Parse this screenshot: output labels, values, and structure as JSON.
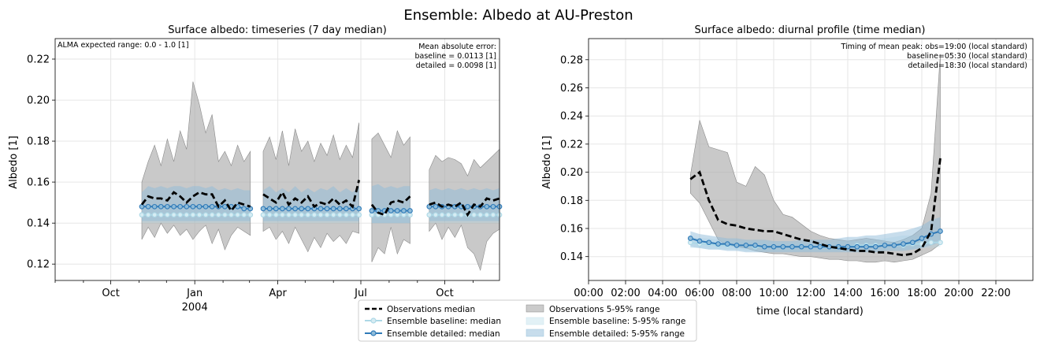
{
  "suptitle": "Ensemble: Albedo at AU-Preston",
  "colors": {
    "obs": "#000000",
    "obs_band": "#a8a8a8",
    "baseline": "#add8e6",
    "detailed": "#2f7ab8",
    "detailed_band": "#8fbcd9"
  },
  "legend": {
    "items": [
      {
        "label": "Observations median",
        "kind": "obs_line"
      },
      {
        "label": "Ensemble baseline: median",
        "kind": "baseline_line"
      },
      {
        "label": "Ensemble detailed: median",
        "kind": "detailed_line"
      },
      {
        "label": "Observations 5-95% range",
        "kind": "obs_band"
      },
      {
        "label": "Ensemble baseline: 5-95% range",
        "kind": "baseline_band"
      },
      {
        "label": "Ensemble detailed: 5-95% range",
        "kind": "detailed_band"
      }
    ]
  },
  "chart_data": [
    {
      "type": "line",
      "title": "Surface albedo: timeseries (7 day median)",
      "xlabel": "",
      "ylabel": "Albedo [1]",
      "ylim": [
        0.112,
        0.23
      ],
      "xlim": [
        "2003-08-01",
        "2004-11-30"
      ],
      "grid": true,
      "yticks": [
        "0.12",
        "0.14",
        "0.16",
        "0.18",
        "0.20",
        "0.22"
      ],
      "ytick_values": [
        0.12,
        0.14,
        0.16,
        0.18,
        0.2,
        0.22
      ],
      "xticks": [
        {
          "date": "2003-10-01",
          "label": "Oct"
        },
        {
          "date": "2004-01-01",
          "label": "Jan"
        },
        {
          "date": "2004-04-01",
          "label": "Apr"
        },
        {
          "date": "2004-07-01",
          "label": "Jul"
        },
        {
          "date": "2004-10-01",
          "label": "Oct"
        }
      ],
      "year_label": {
        "date": "2004-01-01",
        "label": "2004"
      },
      "minor_xticks": [
        "2003-08-01",
        "2003-09-01",
        "2003-11-01",
        "2003-12-01",
        "2004-02-01",
        "2004-03-01",
        "2004-05-01",
        "2004-06-01",
        "2004-08-01",
        "2004-09-01",
        "2004-11-01"
      ],
      "annotation_left": "ALMA expected range: 0.0 - 1.0 [1]",
      "annotation_right": [
        "Mean absolute error:",
        "baseline = 0.0113 [1]",
        "detailed = 0.0098 [1]"
      ],
      "segments": [
        {
          "dates": [
            "2003-11-04",
            "2003-11-11",
            "2003-11-18",
            "2003-11-25",
            "2003-12-02",
            "2003-12-09",
            "2003-12-16",
            "2003-12-23",
            "2003-12-30",
            "2004-01-06",
            "2004-01-13",
            "2004-01-20",
            "2004-01-27",
            "2004-02-03",
            "2004-02-10",
            "2004-02-17",
            "2004-02-24",
            "2004-03-02"
          ],
          "obs_median": [
            0.149,
            0.153,
            0.152,
            0.152,
            0.151,
            0.155,
            0.153,
            0.15,
            0.153,
            0.155,
            0.154,
            0.154,
            0.148,
            0.151,
            0.146,
            0.15,
            0.149,
            0.148
          ],
          "obs_p5": [
            0.132,
            0.138,
            0.133,
            0.14,
            0.135,
            0.139,
            0.134,
            0.137,
            0.132,
            0.136,
            0.139,
            0.13,
            0.137,
            0.127,
            0.134,
            0.138,
            0.136,
            0.134
          ],
          "obs_p95": [
            0.16,
            0.17,
            0.178,
            0.168,
            0.181,
            0.17,
            0.185,
            0.176,
            0.209,
            0.198,
            0.184,
            0.193,
            0.17,
            0.175,
            0.168,
            0.178,
            0.17,
            0.175
          ],
          "baseline_median": [
            0.144,
            0.144,
            0.144,
            0.144,
            0.144,
            0.144,
            0.144,
            0.144,
            0.144,
            0.144,
            0.144,
            0.144,
            0.144,
            0.144,
            0.144,
            0.144,
            0.144,
            0.144
          ],
          "baseline_p5": [
            0.14,
            0.14,
            0.14,
            0.14,
            0.14,
            0.14,
            0.14,
            0.14,
            0.14,
            0.14,
            0.14,
            0.14,
            0.14,
            0.14,
            0.14,
            0.14,
            0.14,
            0.14
          ],
          "baseline_p95": [
            0.148,
            0.148,
            0.148,
            0.148,
            0.148,
            0.148,
            0.148,
            0.148,
            0.148,
            0.148,
            0.148,
            0.148,
            0.148,
            0.148,
            0.148,
            0.148,
            0.148,
            0.148
          ],
          "detailed_median": [
            0.148,
            0.148,
            0.148,
            0.148,
            0.148,
            0.148,
            0.148,
            0.148,
            0.148,
            0.148,
            0.148,
            0.148,
            0.148,
            0.148,
            0.148,
            0.148,
            0.147,
            0.147
          ],
          "detailed_p5": [
            0.141,
            0.141,
            0.141,
            0.141,
            0.141,
            0.141,
            0.141,
            0.141,
            0.141,
            0.141,
            0.141,
            0.141,
            0.141,
            0.141,
            0.141,
            0.141,
            0.141,
            0.141
          ],
          "detailed_p95": [
            0.155,
            0.158,
            0.157,
            0.158,
            0.157,
            0.158,
            0.158,
            0.157,
            0.158,
            0.158,
            0.157,
            0.158,
            0.156,
            0.157,
            0.156,
            0.157,
            0.156,
            0.156
          ]
        },
        {
          "dates": [
            "2004-03-16",
            "2004-03-23",
            "2004-03-30",
            "2004-04-06",
            "2004-04-13",
            "2004-04-20",
            "2004-04-27",
            "2004-05-04",
            "2004-05-11",
            "2004-05-18",
            "2004-05-25",
            "2004-06-01",
            "2004-06-08",
            "2004-06-15",
            "2004-06-22",
            "2004-06-29"
          ],
          "obs_median": [
            0.154,
            0.152,
            0.15,
            0.155,
            0.149,
            0.152,
            0.15,
            0.153,
            0.148,
            0.15,
            0.149,
            0.152,
            0.149,
            0.151,
            0.148,
            0.161
          ],
          "obs_p5": [
            0.136,
            0.138,
            0.132,
            0.136,
            0.13,
            0.138,
            0.132,
            0.126,
            0.133,
            0.128,
            0.135,
            0.131,
            0.134,
            0.13,
            0.136,
            0.135
          ],
          "obs_p95": [
            0.175,
            0.182,
            0.171,
            0.185,
            0.168,
            0.186,
            0.175,
            0.18,
            0.17,
            0.179,
            0.173,
            0.183,
            0.171,
            0.178,
            0.172,
            0.189
          ],
          "baseline_median": [
            0.144,
            0.144,
            0.144,
            0.144,
            0.144,
            0.144,
            0.144,
            0.144,
            0.144,
            0.144,
            0.144,
            0.144,
            0.144,
            0.144,
            0.144,
            0.144
          ],
          "baseline_p5": [
            0.14,
            0.14,
            0.14,
            0.14,
            0.14,
            0.14,
            0.14,
            0.14,
            0.14,
            0.14,
            0.14,
            0.14,
            0.14,
            0.14,
            0.14,
            0.14
          ],
          "baseline_p95": [
            0.148,
            0.148,
            0.148,
            0.148,
            0.148,
            0.148,
            0.148,
            0.148,
            0.148,
            0.148,
            0.148,
            0.148,
            0.148,
            0.148,
            0.148,
            0.148
          ],
          "detailed_median": [
            0.147,
            0.147,
            0.147,
            0.147,
            0.147,
            0.147,
            0.147,
            0.147,
            0.147,
            0.147,
            0.147,
            0.147,
            0.147,
            0.147,
            0.147,
            0.147
          ],
          "detailed_p5": [
            0.141,
            0.141,
            0.141,
            0.141,
            0.141,
            0.141,
            0.141,
            0.141,
            0.141,
            0.141,
            0.141,
            0.141,
            0.141,
            0.141,
            0.141,
            0.141
          ],
          "detailed_p95": [
            0.156,
            0.158,
            0.155,
            0.157,
            0.155,
            0.158,
            0.155,
            0.157,
            0.155,
            0.157,
            0.156,
            0.158,
            0.155,
            0.157,
            0.155,
            0.158
          ]
        },
        {
          "dates": [
            "2004-07-13",
            "2004-07-20",
            "2004-07-27",
            "2004-08-03",
            "2004-08-10",
            "2004-08-17",
            "2004-08-24"
          ],
          "obs_median": [
            0.149,
            0.145,
            0.144,
            0.15,
            0.151,
            0.15,
            0.153
          ],
          "obs_p5": [
            0.121,
            0.128,
            0.125,
            0.138,
            0.125,
            0.132,
            0.13
          ],
          "obs_p95": [
            0.181,
            0.184,
            0.178,
            0.172,
            0.185,
            0.178,
            0.182
          ],
          "baseline_median": [
            0.144,
            0.144,
            0.144,
            0.144,
            0.144,
            0.144,
            0.144
          ],
          "baseline_p5": [
            0.14,
            0.14,
            0.14,
            0.14,
            0.14,
            0.14,
            0.14
          ],
          "baseline_p95": [
            0.148,
            0.148,
            0.148,
            0.148,
            0.148,
            0.148,
            0.148
          ],
          "detailed_median": [
            0.146,
            0.146,
            0.146,
            0.146,
            0.146,
            0.146,
            0.146
          ],
          "detailed_p5": [
            0.14,
            0.14,
            0.14,
            0.14,
            0.14,
            0.14,
            0.14
          ],
          "detailed_p95": [
            0.158,
            0.159,
            0.157,
            0.158,
            0.157,
            0.158,
            0.158
          ]
        },
        {
          "dates": [
            "2004-09-14",
            "2004-09-21",
            "2004-09-28",
            "2004-10-05",
            "2004-10-12",
            "2004-10-19",
            "2004-10-26",
            "2004-11-02",
            "2004-11-09",
            "2004-11-16",
            "2004-11-23",
            "2004-11-30"
          ],
          "obs_median": [
            0.149,
            0.15,
            0.148,
            0.149,
            0.148,
            0.15,
            0.144,
            0.149,
            0.148,
            0.152,
            0.151,
            0.152
          ],
          "obs_p5": [
            0.136,
            0.14,
            0.132,
            0.138,
            0.133,
            0.139,
            0.128,
            0.125,
            0.117,
            0.131,
            0.135,
            0.137
          ],
          "obs_p95": [
            0.166,
            0.173,
            0.17,
            0.172,
            0.171,
            0.169,
            0.163,
            0.171,
            0.167,
            0.17,
            0.173,
            0.176
          ],
          "baseline_median": [
            0.144,
            0.144,
            0.144,
            0.144,
            0.144,
            0.144,
            0.144,
            0.144,
            0.144,
            0.144,
            0.144,
            0.144
          ],
          "baseline_p5": [
            0.14,
            0.14,
            0.14,
            0.14,
            0.14,
            0.14,
            0.14,
            0.14,
            0.14,
            0.14,
            0.14,
            0.14
          ],
          "baseline_p95": [
            0.148,
            0.148,
            0.148,
            0.148,
            0.148,
            0.148,
            0.148,
            0.148,
            0.148,
            0.148,
            0.148,
            0.148
          ],
          "detailed_median": [
            0.148,
            0.148,
            0.148,
            0.148,
            0.148,
            0.148,
            0.148,
            0.148,
            0.148,
            0.148,
            0.148,
            0.148
          ],
          "detailed_p5": [
            0.141,
            0.141,
            0.141,
            0.141,
            0.141,
            0.141,
            0.141,
            0.141,
            0.141,
            0.141,
            0.141,
            0.141
          ],
          "detailed_p95": [
            0.156,
            0.157,
            0.156,
            0.157,
            0.156,
            0.157,
            0.156,
            0.157,
            0.156,
            0.157,
            0.156,
            0.157
          ]
        }
      ]
    },
    {
      "type": "line",
      "title": "Surface albedo: diurnal profile (time median)",
      "xlabel": "time (local standard)",
      "ylabel": "Albedo [1]",
      "ylim": [
        0.123,
        0.295
      ],
      "xlim": [
        0,
        24
      ],
      "grid": true,
      "yticks": [
        "0.14",
        "0.16",
        "0.18",
        "0.20",
        "0.22",
        "0.24",
        "0.26",
        "0.28"
      ],
      "ytick_values": [
        0.14,
        0.16,
        0.18,
        0.2,
        0.22,
        0.24,
        0.26,
        0.28
      ],
      "xticks": [
        "00:00",
        "02:00",
        "04:00",
        "06:00",
        "08:00",
        "10:00",
        "12:00",
        "14:00",
        "16:00",
        "18:00",
        "20:00",
        "22:00"
      ],
      "xtick_values": [
        0,
        2,
        4,
        6,
        8,
        10,
        12,
        14,
        16,
        18,
        20,
        22
      ],
      "annotation_right": [
        "Timing of mean peak: obs=19:00 (local standard)",
        "baseline=05:30 (local standard)",
        "detailed=18:30 (local standard)"
      ],
      "x": [
        5.5,
        6.0,
        6.5,
        7.0,
        7.5,
        8.0,
        8.5,
        9.0,
        9.5,
        10.0,
        10.5,
        11.0,
        11.5,
        12.0,
        12.5,
        13.0,
        13.5,
        14.0,
        14.5,
        15.0,
        15.5,
        16.0,
        16.5,
        17.0,
        17.5,
        18.0,
        18.5,
        19.0
      ],
      "obs_median": [
        0.195,
        0.2,
        0.18,
        0.166,
        0.163,
        0.162,
        0.16,
        0.159,
        0.158,
        0.158,
        0.156,
        0.154,
        0.152,
        0.151,
        0.149,
        0.147,
        0.146,
        0.145,
        0.144,
        0.144,
        0.143,
        0.143,
        0.142,
        0.141,
        0.142,
        0.146,
        0.158,
        0.21
      ],
      "obs_p5": [
        0.185,
        0.178,
        0.165,
        0.152,
        0.148,
        0.147,
        0.146,
        0.144,
        0.143,
        0.142,
        0.142,
        0.141,
        0.14,
        0.14,
        0.139,
        0.138,
        0.138,
        0.137,
        0.137,
        0.136,
        0.136,
        0.137,
        0.136,
        0.137,
        0.138,
        0.141,
        0.144,
        0.149
      ],
      "obs_p95": [
        0.198,
        0.237,
        0.218,
        0.216,
        0.214,
        0.193,
        0.19,
        0.204,
        0.198,
        0.18,
        0.17,
        0.168,
        0.163,
        0.158,
        0.155,
        0.153,
        0.152,
        0.151,
        0.152,
        0.153,
        0.152,
        0.151,
        0.15,
        0.152,
        0.155,
        0.16,
        0.185,
        0.284
      ],
      "baseline_median": [
        0.15,
        0.149,
        0.149,
        0.148,
        0.148,
        0.148,
        0.148,
        0.147,
        0.147,
        0.147,
        0.147,
        0.147,
        0.147,
        0.147,
        0.147,
        0.147,
        0.147,
        0.147,
        0.148,
        0.148,
        0.148,
        0.148,
        0.148,
        0.148,
        0.149,
        0.149,
        0.15,
        0.15
      ],
      "baseline_p5": [
        0.146,
        0.146,
        0.145,
        0.145,
        0.145,
        0.145,
        0.144,
        0.144,
        0.144,
        0.144,
        0.144,
        0.144,
        0.144,
        0.144,
        0.144,
        0.144,
        0.144,
        0.144,
        0.144,
        0.144,
        0.145,
        0.145,
        0.145,
        0.145,
        0.145,
        0.146,
        0.146,
        0.147
      ],
      "baseline_p95": [
        0.154,
        0.153,
        0.153,
        0.152,
        0.152,
        0.151,
        0.151,
        0.151,
        0.151,
        0.15,
        0.15,
        0.15,
        0.15,
        0.15,
        0.15,
        0.15,
        0.151,
        0.151,
        0.151,
        0.152,
        0.152,
        0.153,
        0.154,
        0.155,
        0.155,
        0.155,
        0.156,
        0.156
      ],
      "detailed_median": [
        0.153,
        0.151,
        0.15,
        0.149,
        0.149,
        0.148,
        0.148,
        0.148,
        0.147,
        0.147,
        0.147,
        0.147,
        0.147,
        0.147,
        0.147,
        0.147,
        0.147,
        0.147,
        0.147,
        0.147,
        0.147,
        0.148,
        0.148,
        0.149,
        0.15,
        0.153,
        0.156,
        0.158
      ],
      "detailed_p5": [
        0.147,
        0.146,
        0.145,
        0.145,
        0.144,
        0.144,
        0.143,
        0.143,
        0.143,
        0.143,
        0.143,
        0.143,
        0.143,
        0.143,
        0.143,
        0.143,
        0.143,
        0.143,
        0.143,
        0.143,
        0.143,
        0.144,
        0.144,
        0.144,
        0.145,
        0.146,
        0.148,
        0.15
      ],
      "detailed_p95": [
        0.158,
        0.156,
        0.155,
        0.154,
        0.153,
        0.153,
        0.152,
        0.152,
        0.152,
        0.151,
        0.151,
        0.151,
        0.152,
        0.152,
        0.152,
        0.152,
        0.153,
        0.154,
        0.154,
        0.155,
        0.155,
        0.156,
        0.157,
        0.158,
        0.16,
        0.162,
        0.166,
        0.168
      ]
    }
  ]
}
